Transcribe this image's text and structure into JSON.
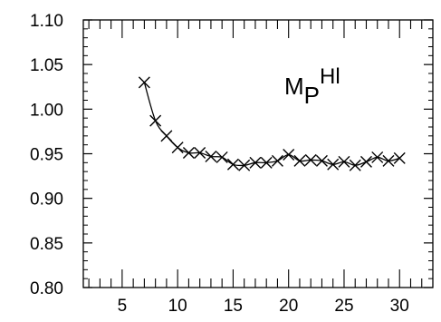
{
  "chart_data": {
    "type": "line",
    "title": "",
    "xlabel": "",
    "ylabel": "",
    "xlim": [
      1.5,
      33
    ],
    "ylim": [
      0.8,
      1.1
    ],
    "xticks": [
      5,
      10,
      15,
      20,
      25,
      30
    ],
    "yticks": [
      0.8,
      0.85,
      0.9,
      0.95,
      1.0,
      1.05,
      1.1
    ],
    "ytick_labels": [
      "0.80",
      "0.85",
      "0.90",
      "0.95",
      "1.00",
      "1.05",
      "1.10"
    ],
    "annotation": {
      "main": "M",
      "sub": "P",
      "sup": "Hl"
    },
    "grid": false,
    "marker": "x",
    "series": [
      {
        "x": [
          7,
          8,
          9,
          10,
          11,
          12,
          13,
          14,
          15,
          16,
          17,
          18,
          19,
          20,
          21,
          22,
          23,
          24,
          25,
          26,
          27,
          28,
          29,
          30
        ],
        "y": [
          1.03,
          0.987,
          0.97,
          0.957,
          0.951,
          0.951,
          0.947,
          0.946,
          0.938,
          0.937,
          0.94,
          0.94,
          0.942,
          0.949,
          0.942,
          0.943,
          0.942,
          0.938,
          0.941,
          0.937,
          0.941,
          0.946,
          0.942,
          0.945
        ]
      }
    ]
  }
}
